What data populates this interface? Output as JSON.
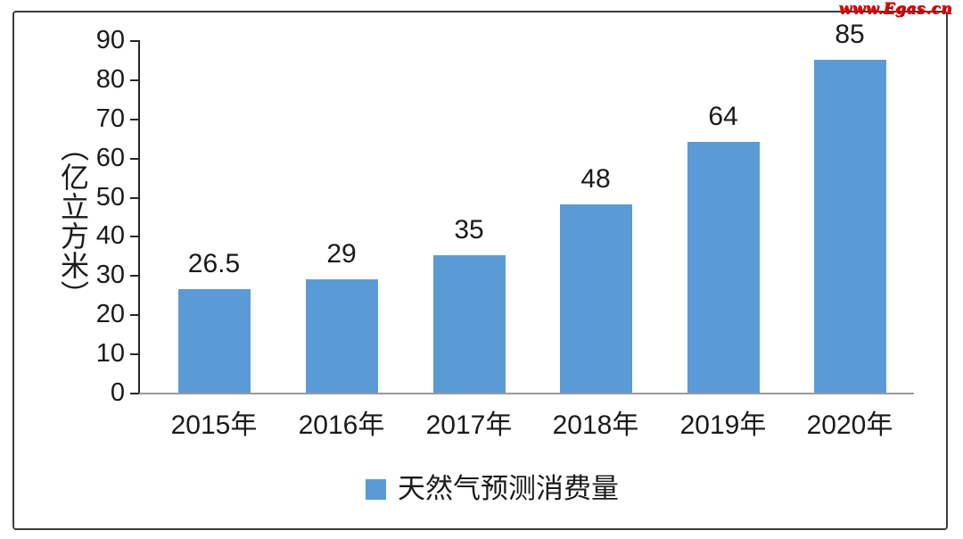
{
  "watermark": "www.Egas.cn",
  "chart_data": {
    "type": "bar",
    "title": "",
    "categories": [
      "2015年",
      "2016年",
      "2017年",
      "2018年",
      "2019年",
      "2020年"
    ],
    "values": [
      26.5,
      29,
      35,
      48,
      64,
      85
    ],
    "data_labels": [
      "26.5",
      "29",
      "35",
      "48",
      "64",
      "85"
    ],
    "series_name": "天然气预测消费量",
    "xlabel": "",
    "ylabel": "（亿立方米）",
    "ylim": [
      0,
      90
    ],
    "yticks": [
      0,
      10,
      20,
      30,
      40,
      50,
      60,
      70,
      80,
      90
    ],
    "grid": false,
    "legend_position": "bottom",
    "bar_color": "#5b9bd5",
    "axis_color": "#262626",
    "baseline_color": "#9a9a9a",
    "text_color": "#1a1a1a",
    "watermark_color": "#e80000"
  }
}
